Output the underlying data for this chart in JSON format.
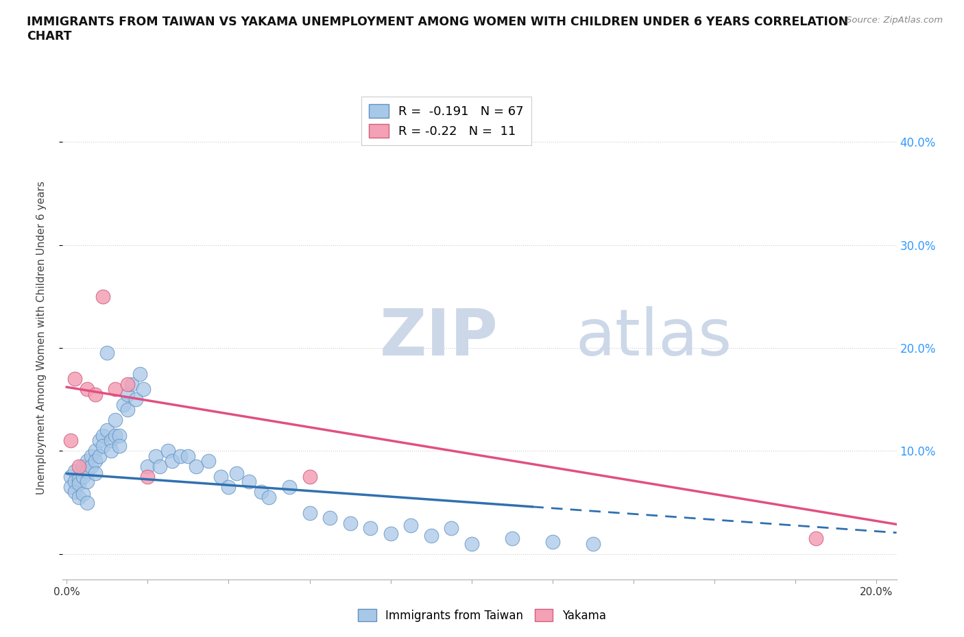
{
  "title_line1": "IMMIGRANTS FROM TAIWAN VS YAKAMA UNEMPLOYMENT AMONG WOMEN WITH CHILDREN UNDER 6 YEARS CORRELATION",
  "title_line2": "CHART",
  "source_text": "Source: ZipAtlas.com",
  "ylabel": "Unemployment Among Women with Children Under 6 years",
  "xlim": [
    -0.001,
    0.205
  ],
  "ylim": [
    -0.025,
    0.445
  ],
  "yticks": [
    0.0,
    0.1,
    0.2,
    0.3,
    0.4
  ],
  "xticks": [
    0.0,
    0.02,
    0.04,
    0.06,
    0.08,
    0.1,
    0.12,
    0.14,
    0.16,
    0.18,
    0.2
  ],
  "xtick_labels": [
    "0.0%",
    "",
    "",
    "",
    "",
    "",
    "",
    "",
    "",
    "",
    "20.0%"
  ],
  "right_ytick_labels": [
    "",
    "10.0%",
    "20.0%",
    "30.0%",
    "40.0%"
  ],
  "taiwan_R": -0.191,
  "taiwan_N": 67,
  "yakama_R": -0.22,
  "yakama_N": 11,
  "taiwan_color": "#a8c8e8",
  "yakama_color": "#f4a0b5",
  "taiwan_edge_color": "#6090c0",
  "yakama_edge_color": "#d06080",
  "taiwan_line_color": "#3070b0",
  "yakama_line_color": "#e05080",
  "watermark_color": "#ccd8e8",
  "taiwan_x": [
    0.001,
    0.001,
    0.002,
    0.002,
    0.002,
    0.003,
    0.003,
    0.003,
    0.004,
    0.004,
    0.004,
    0.005,
    0.005,
    0.005,
    0.005,
    0.006,
    0.006,
    0.007,
    0.007,
    0.007,
    0.008,
    0.008,
    0.009,
    0.009,
    0.01,
    0.01,
    0.011,
    0.011,
    0.012,
    0.012,
    0.013,
    0.013,
    0.014,
    0.015,
    0.015,
    0.016,
    0.017,
    0.018,
    0.019,
    0.02,
    0.022,
    0.023,
    0.025,
    0.026,
    0.028,
    0.03,
    0.032,
    0.035,
    0.038,
    0.04,
    0.042,
    0.045,
    0.048,
    0.05,
    0.055,
    0.06,
    0.065,
    0.07,
    0.075,
    0.08,
    0.085,
    0.09,
    0.095,
    0.1,
    0.11,
    0.12,
    0.13
  ],
  "taiwan_y": [
    0.075,
    0.065,
    0.08,
    0.07,
    0.06,
    0.072,
    0.068,
    0.055,
    0.085,
    0.075,
    0.058,
    0.09,
    0.08,
    0.07,
    0.05,
    0.095,
    0.085,
    0.1,
    0.09,
    0.078,
    0.11,
    0.095,
    0.115,
    0.105,
    0.12,
    0.195,
    0.11,
    0.1,
    0.13,
    0.115,
    0.115,
    0.105,
    0.145,
    0.155,
    0.14,
    0.165,
    0.15,
    0.175,
    0.16,
    0.085,
    0.095,
    0.085,
    0.1,
    0.09,
    0.095,
    0.095,
    0.085,
    0.09,
    0.075,
    0.065,
    0.078,
    0.07,
    0.06,
    0.055,
    0.065,
    0.04,
    0.035,
    0.03,
    0.025,
    0.02,
    0.028,
    0.018,
    0.025,
    0.01,
    0.015,
    0.012,
    0.01
  ],
  "yakama_x": [
    0.001,
    0.002,
    0.003,
    0.005,
    0.007,
    0.009,
    0.012,
    0.015,
    0.02,
    0.06,
    0.185
  ],
  "yakama_y": [
    0.11,
    0.17,
    0.085,
    0.16,
    0.155,
    0.25,
    0.16,
    0.165,
    0.075,
    0.075,
    0.015
  ],
  "tw_line_x0": 0.0,
  "tw_line_x_solid_end": 0.115,
  "tw_line_x1": 0.205,
  "tw_intercept": 0.078,
  "tw_slope": -0.28,
  "yk_line_x0": 0.0,
  "yk_line_x1": 0.205,
  "yk_intercept": 0.162,
  "yk_slope": -0.65
}
